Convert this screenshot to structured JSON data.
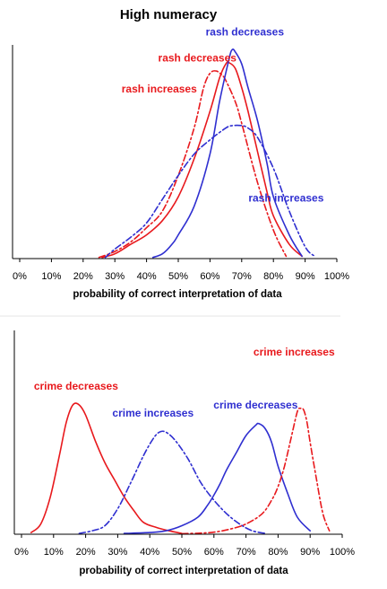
{
  "figure_title": "High numeracy",
  "colors": {
    "red": "#e8191d",
    "blue": "#2f2fd0",
    "axis": "#000000"
  },
  "chart_data": [
    {
      "type": "line",
      "title": "",
      "xlabel": "probability of correct interpretation of data",
      "ylabel": "",
      "xlim": [
        0,
        100
      ],
      "xticks": [
        "0%",
        "10%",
        "20%",
        "30%",
        "40%",
        "50%",
        "60%",
        "70%",
        "80%",
        "90%",
        "100%"
      ],
      "grid": false,
      "series": [
        {
          "name": "rash decreases",
          "color": "red",
          "dash": "solid",
          "x": [
            26,
            30,
            35,
            40,
            45,
            50,
            55,
            60,
            63,
            65,
            66,
            68,
            70,
            72,
            75,
            78,
            80,
            85,
            89
          ],
          "y": [
            0.5,
            2,
            6,
            10,
            16,
            26,
            42,
            62,
            76,
            82,
            82.5,
            80,
            72,
            62,
            45,
            28,
            18,
            6,
            1
          ]
        },
        {
          "name": "rash increases",
          "color": "red",
          "dash": "dashdot",
          "x": [
            25,
            30,
            35,
            40,
            45,
            50,
            55,
            58,
            60,
            62,
            64,
            65,
            68,
            70,
            75,
            80,
            84
          ],
          "y": [
            0.5,
            3,
            7,
            13,
            20,
            35,
            55,
            72,
            78,
            79,
            77,
            75,
            66,
            57,
            32,
            12,
            1
          ]
        },
        {
          "name": "rash decreases",
          "color": "blue",
          "dash": "solid",
          "x": [
            42,
            45,
            48,
            50,
            55,
            60,
            63,
            66,
            67,
            68,
            70,
            72,
            75,
            78,
            80,
            85,
            89
          ],
          "y": [
            0.5,
            2,
            6,
            10,
            22,
            44,
            66,
            84,
            88,
            87,
            82,
            72,
            58,
            40,
            26,
            10,
            1
          ]
        },
        {
          "name": "rash increases",
          "color": "blue",
          "dash": "dashdot",
          "x": [
            27,
            30,
            35,
            40,
            45,
            50,
            55,
            60,
            65,
            67,
            70,
            72,
            75,
            80,
            85,
            90,
            93
          ],
          "y": [
            0.5,
            4,
            9,
            15,
            25,
            35,
            44,
            50,
            55,
            56,
            56,
            55,
            51,
            38,
            20,
            5,
            1
          ]
        }
      ],
      "annotations": [
        {
          "text": "rash decreases",
          "color": "blue",
          "x": 71,
          "y": 94
        },
        {
          "text": "rash decreases",
          "color": "red",
          "x": 56,
          "y": 83
        },
        {
          "text": "rash increases",
          "color": "red",
          "x": 44,
          "y": 70
        },
        {
          "text": "rash increases",
          "color": "blue",
          "x": 84,
          "y": 24
        }
      ]
    },
    {
      "type": "line",
      "title": "",
      "xlabel": "probability of correct interpretation of data",
      "ylabel": "",
      "xlim": [
        0,
        100
      ],
      "xticks": [
        "0%",
        "10%",
        "20%",
        "30%",
        "40%",
        "50%",
        "60%",
        "70%",
        "80%",
        "90%",
        "100%"
      ],
      "grid": false,
      "series": [
        {
          "name": "crime decreases",
          "color": "red",
          "dash": "solid",
          "x": [
            3,
            6,
            9,
            12,
            14,
            16,
            18,
            20,
            23,
            26,
            29,
            32,
            35,
            38,
            42,
            46,
            50
          ],
          "y": [
            1,
            6,
            22,
            48,
            66,
            76,
            76,
            70,
            55,
            42,
            32,
            22,
            14,
            7,
            4,
            2,
            0.5
          ]
        },
        {
          "name": "crime increases",
          "color": "blue",
          "dash": "dashdot",
          "x": [
            18,
            22,
            26,
            30,
            34,
            38,
            41,
            43,
            45,
            48,
            52,
            56,
            60,
            64,
            68,
            72,
            76
          ],
          "y": [
            0.5,
            2,
            5,
            15,
            30,
            46,
            56,
            60,
            60,
            55,
            44,
            30,
            20,
            12,
            6,
            2,
            0.5
          ]
        },
        {
          "name": "crime decreases",
          "color": "blue",
          "dash": "solid",
          "x": [
            32,
            40,
            45,
            50,
            55,
            58,
            60,
            62,
            64,
            67,
            70,
            73,
            74,
            76,
            78,
            80,
            83,
            86,
            90
          ],
          "y": [
            0.5,
            1,
            2,
            5,
            10,
            17,
            23,
            30,
            38,
            48,
            58,
            64,
            65,
            62,
            54,
            40,
            24,
            10,
            2
          ]
        },
        {
          "name": "crime increases",
          "color": "red",
          "dash": "dashdot",
          "x": [
            50,
            55,
            60,
            65,
            70,
            75,
            78,
            80,
            82,
            84,
            86,
            87,
            88,
            89,
            90,
            92,
            94,
            96
          ],
          "y": [
            0.3,
            0.6,
            1.2,
            3,
            6,
            12,
            20,
            28,
            40,
            56,
            72,
            74,
            73,
            66,
            54,
            32,
            12,
            2
          ]
        }
      ],
      "annotations": [
        {
          "text": "crime decreases",
          "color": "red",
          "x": 17,
          "y": 85
        },
        {
          "text": "crime increases",
          "color": "blue",
          "x": 41,
          "y": 69
        },
        {
          "text": "crime decreases",
          "color": "blue",
          "x": 73,
          "y": 74
        },
        {
          "text": "crime increases",
          "color": "red",
          "x": 85,
          "y": 105
        }
      ]
    }
  ]
}
